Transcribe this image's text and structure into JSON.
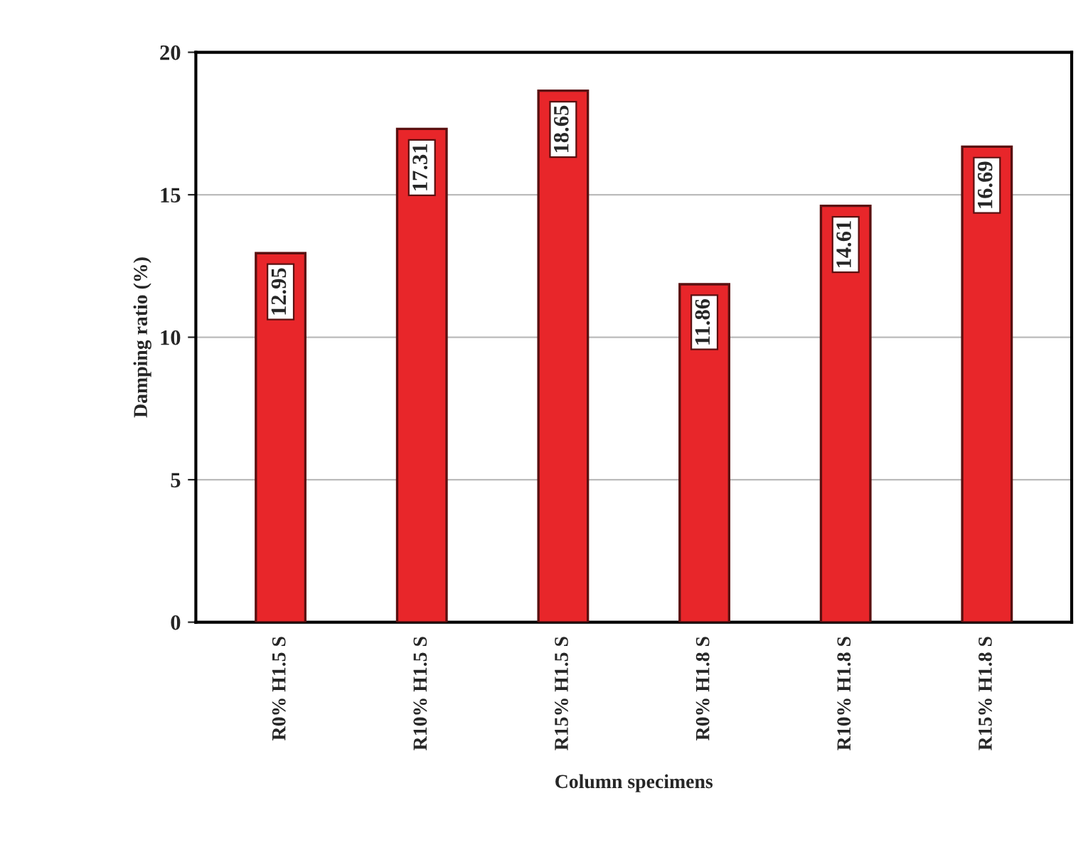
{
  "chart_data": {
    "type": "bar",
    "xlabel": "Column specimens",
    "ylabel": "Damping ratio (%)",
    "categories": [
      "R0% H1.5 S",
      "R10% H1.5 S",
      "R15% H1.5 S",
      "R0% H1.8 S",
      "R10% H1.8 S",
      "R15% H1.8 S"
    ],
    "values": [
      12.95,
      17.31,
      18.65,
      11.86,
      14.61,
      16.69
    ],
    "color": "#e8262a",
    "ylim": [
      0,
      20
    ],
    "yticks": [
      0,
      5,
      10,
      15,
      20
    ],
    "grid": "y",
    "data_labels": true
  }
}
